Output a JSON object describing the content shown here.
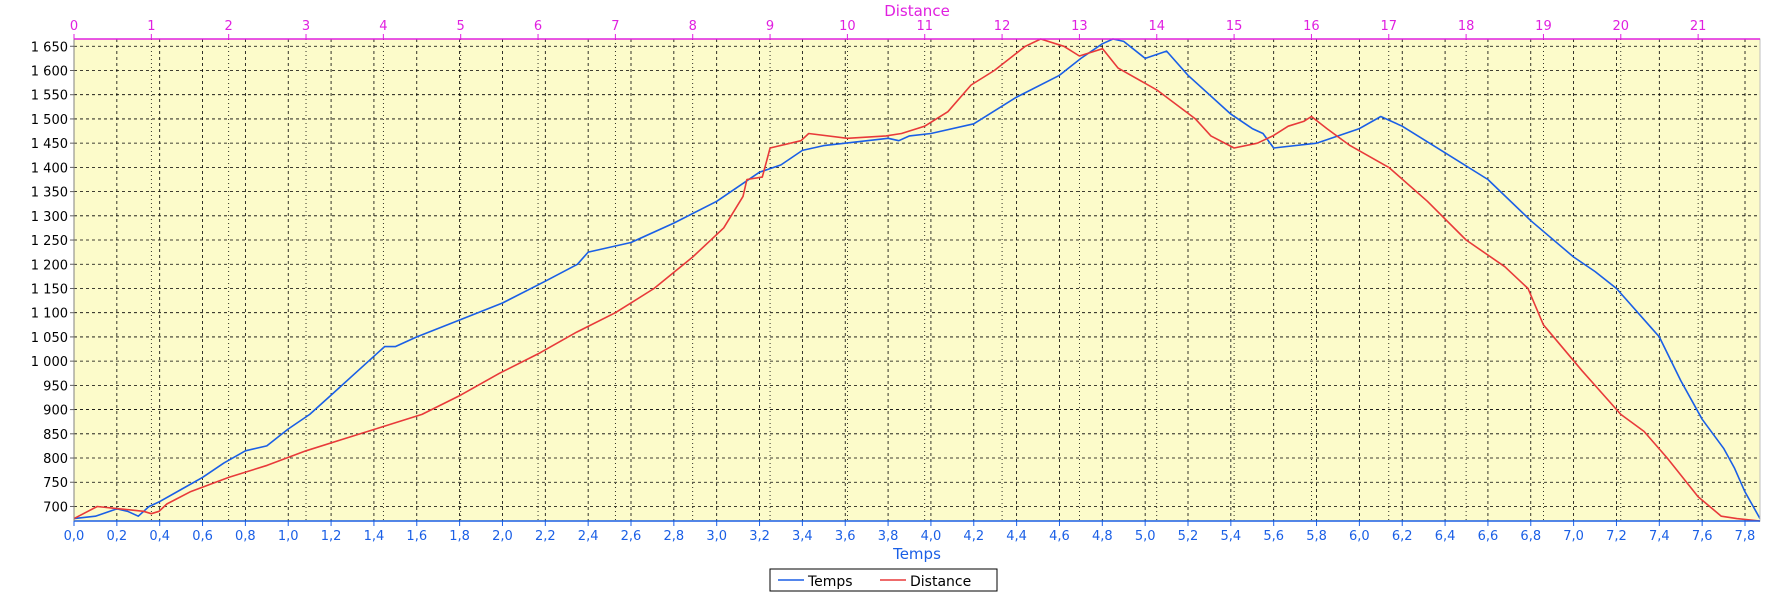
{
  "chart_data": {
    "type": "line",
    "grid": true,
    "legend_placement": "bottom-center",
    "colors": {
      "plot_background": "#fcfbca",
      "grid": "#000000",
      "top_axis": "#e020e0",
      "bottom_axis": "#1a5fe6"
    },
    "x_axis": {
      "label": "Temps",
      "range": [
        0.0,
        7.87
      ],
      "ticks": [
        0.0,
        0.2,
        0.4,
        0.6,
        0.8,
        1.0,
        1.2,
        1.4,
        1.6,
        1.8,
        2.0,
        2.2,
        2.4,
        2.6,
        2.8,
        3.0,
        3.2,
        3.4,
        3.6,
        3.8,
        4.0,
        4.2,
        4.4,
        4.6,
        4.8,
        5.0,
        5.2,
        5.4,
        5.6,
        5.8,
        6.0,
        6.2,
        6.4,
        6.6,
        6.8,
        7.0,
        7.2,
        7.4,
        7.6,
        7.8
      ],
      "tick_labels": [
        "0,0",
        "0,2",
        "0,4",
        "0,6",
        "0,8",
        "1,0",
        "1,2",
        "1,4",
        "1,6",
        "1,8",
        "2,0",
        "2,2",
        "2,4",
        "2,6",
        "2,8",
        "3,0",
        "3,2",
        "3,4",
        "3,6",
        "3,8",
        "4,0",
        "4,2",
        "4,4",
        "4,6",
        "4,8",
        "5,0",
        "5,2",
        "5,4",
        "5,6",
        "5,8",
        "6,0",
        "6,2",
        "6,4",
        "6,6",
        "6,8",
        "7,0",
        "7,2",
        "7,4",
        "7,6",
        "7,8"
      ]
    },
    "x2_axis": {
      "label": "Distance",
      "range": [
        0,
        21.8
      ],
      "ticks": [
        0,
        1,
        2,
        3,
        4,
        5,
        6,
        7,
        8,
        9,
        10,
        11,
        12,
        13,
        14,
        15,
        16,
        17,
        18,
        19,
        20,
        21
      ],
      "tick_labels": [
        "0",
        "1",
        "2",
        "3",
        "4",
        "5",
        "6",
        "7",
        "8",
        "9",
        "10",
        "11",
        "12",
        "13",
        "14",
        "15",
        "16",
        "17",
        "18",
        "19",
        "20",
        "21"
      ]
    },
    "y_axis": {
      "label": "",
      "range": [
        670,
        1665
      ],
      "ticks": [
        700,
        750,
        800,
        850,
        900,
        950,
        1000,
        1050,
        1100,
        1150,
        1200,
        1250,
        1300,
        1350,
        1400,
        1450,
        1500,
        1550,
        1600,
        1650
      ],
      "tick_labels": [
        "700",
        "750",
        "800",
        "850",
        "900",
        "950",
        "1 000",
        "1 050",
        "1 100",
        "1 150",
        "1 200",
        "1 250",
        "1 300",
        "1 350",
        "1 400",
        "1 450",
        "1 500",
        "1 550",
        "1 600",
        "1 650"
      ]
    },
    "series": [
      {
        "name": "Temps",
        "color": "#1a5fe6",
        "axis": "bottom",
        "x": [
          0.0,
          0.1,
          0.2,
          0.25,
          0.3,
          0.35,
          0.4,
          0.5,
          0.6,
          0.7,
          0.8,
          0.9,
          1.0,
          1.1,
          1.2,
          1.3,
          1.4,
          1.45,
          1.5,
          1.6,
          1.8,
          2.0,
          2.2,
          2.35,
          2.4,
          2.6,
          2.8,
          3.0,
          3.2,
          3.3,
          3.4,
          3.5,
          3.6,
          3.8,
          3.85,
          3.9,
          4.0,
          4.2,
          4.4,
          4.6,
          4.7,
          4.8,
          4.85,
          4.9,
          5.0,
          5.1,
          5.2,
          5.4,
          5.5,
          5.55,
          5.6,
          5.8,
          6.0,
          6.1,
          6.2,
          6.4,
          6.6,
          6.8,
          7.0,
          7.1,
          7.2,
          7.4,
          7.5,
          7.6,
          7.7,
          7.75,
          7.8,
          7.87
        ],
        "y": [
          675,
          680,
          695,
          690,
          680,
          700,
          710,
          735,
          760,
          790,
          815,
          825,
          860,
          890,
          930,
          970,
          1010,
          1030,
          1030,
          1050,
          1085,
          1120,
          1165,
          1200,
          1225,
          1245,
          1285,
          1330,
          1390,
          1405,
          1435,
          1445,
          1450,
          1460,
          1455,
          1465,
          1470,
          1490,
          1545,
          1590,
          1625,
          1655,
          1665,
          1660,
          1625,
          1640,
          1590,
          1510,
          1480,
          1470,
          1440,
          1450,
          1480,
          1505,
          1485,
          1430,
          1375,
          1290,
          1215,
          1185,
          1150,
          1050,
          960,
          880,
          820,
          780,
          730,
          675
        ]
      },
      {
        "name": "Distance",
        "color": "#e83a3a",
        "axis": "top",
        "x": [
          0.0,
          0.3,
          0.6,
          0.9,
          1.0,
          1.1,
          1.2,
          1.5,
          2.0,
          2.5,
          3.0,
          3.5,
          4.0,
          4.5,
          5.0,
          5.5,
          6.0,
          6.5,
          7.0,
          7.5,
          8.0,
          8.4,
          8.65,
          8.7,
          8.9,
          9.0,
          9.4,
          9.5,
          10.0,
          10.5,
          10.7,
          11.0,
          11.3,
          11.6,
          11.9,
          12.3,
          12.5,
          12.8,
          13.0,
          13.2,
          13.3,
          13.5,
          14.0,
          14.5,
          14.7,
          15.0,
          15.3,
          15.5,
          15.7,
          15.9,
          16.0,
          16.2,
          16.5,
          17.0,
          17.5,
          18.0,
          18.5,
          18.8,
          19.0,
          19.5,
          20.0,
          20.3,
          20.6,
          21.0,
          21.3,
          21.5,
          21.8
        ],
        "y": [
          675,
          700,
          695,
          690,
          685,
          690,
          705,
          730,
          760,
          785,
          815,
          840,
          865,
          890,
          930,
          975,
          1015,
          1060,
          1100,
          1150,
          1215,
          1275,
          1340,
          1375,
          1380,
          1440,
          1455,
          1470,
          1460,
          1465,
          1470,
          1485,
          1515,
          1570,
          1600,
          1650,
          1665,
          1650,
          1630,
          1640,
          1645,
          1605,
          1560,
          1500,
          1465,
          1440,
          1450,
          1465,
          1485,
          1495,
          1505,
          1480,
          1445,
          1400,
          1330,
          1250,
          1195,
          1150,
          1075,
          980,
          890,
          855,
          800,
          720,
          680,
          675,
          670
        ]
      }
    ]
  }
}
